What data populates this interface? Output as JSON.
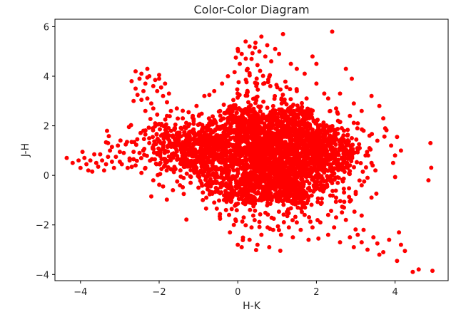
{
  "chart_data": {
    "type": "scatter",
    "title": "Color-Color Diagram",
    "xlabel": "H-K",
    "ylabel": "J-H",
    "xlim": [
      -4.65,
      5.35
    ],
    "ylim": [
      -4.25,
      6.3
    ],
    "xticks": [
      -4,
      -2,
      0,
      2,
      4
    ],
    "yticks": [
      -4,
      -2,
      0,
      2,
      4,
      6
    ],
    "xtick_labels": [
      "−4",
      "−2",
      "0",
      "2",
      "4"
    ],
    "ytick_labels": [
      "−4",
      "−2",
      "0",
      "2",
      "4",
      "6"
    ],
    "grid": false,
    "legend": false,
    "marker_color": "#ff0000",
    "cluster_regions": [
      {
        "center": [
          0.5,
          0.8
        ],
        "spread": [
          1.0,
          0.9
        ]
      },
      {
        "center": [
          0.6,
          1.3
        ],
        "spread": [
          0.4,
          1.3
        ]
      },
      {
        "center": [
          1.0,
          0.0
        ],
        "spread": [
          1.1,
          0.9
        ]
      },
      {
        "center": [
          -1.2,
          1.2
        ],
        "spread": [
          0.7,
          0.5
        ]
      },
      {
        "center": [
          1.8,
          1.1
        ],
        "spread": [
          0.6,
          0.6
        ]
      }
    ],
    "points": [
      [
        -4.35,
        0.7
      ],
      [
        -4.2,
        0.5
      ],
      [
        -4.05,
        0.6
      ],
      [
        -4.0,
        0.3
      ],
      [
        -3.9,
        0.7
      ],
      [
        -3.85,
        0.45
      ],
      [
        -3.75,
        0.6
      ],
      [
        -3.7,
        0.15
      ],
      [
        -3.6,
        0.5
      ],
      [
        -3.55,
        0.35
      ],
      [
        -3.5,
        0.85
      ],
      [
        -3.45,
        0.6
      ],
      [
        -3.4,
        0.2
      ],
      [
        -3.35,
        0.45
      ],
      [
        -3.3,
        0.75
      ],
      [
        -3.25,
        1.0
      ],
      [
        -3.2,
        0.55
      ],
      [
        -3.15,
        0.3
      ],
      [
        -3.1,
        0.75
      ],
      [
        -3.05,
        1.2
      ],
      [
        -3.0,
        0.95
      ],
      [
        -2.95,
        0.45
      ],
      [
        -2.9,
        0.9
      ],
      [
        -2.85,
        1.25
      ],
      [
        -2.75,
        0.6
      ],
      [
        -2.65,
        0.95
      ],
      [
        -2.6,
        0.4
      ],
      [
        -3.95,
        0.95
      ],
      [
        -3.8,
        0.2
      ],
      [
        -3.65,
        0.85
      ],
      [
        -3.3,
        1.3
      ],
      [
        -3.2,
        1.15
      ],
      [
        -3.0,
        0.55
      ],
      [
        -2.8,
        0.3
      ],
      [
        -2.7,
        1.35
      ],
      [
        -2.6,
        4.2
      ],
      [
        -2.5,
        3.9
      ],
      [
        -2.45,
        4.1
      ],
      [
        -2.35,
        3.7
      ],
      [
        -2.3,
        3.95
      ],
      [
        -2.25,
        4.0
      ],
      [
        -2.15,
        3.6
      ],
      [
        -2.1,
        3.85
      ],
      [
        -2.05,
        3.4
      ],
      [
        -2.0,
        3.9
      ],
      [
        -1.95,
        3.55
      ],
      [
        -1.9,
        3.2
      ],
      [
        -2.6,
        3.5
      ],
      [
        -2.55,
        3.25
      ],
      [
        -2.45,
        3.05
      ],
      [
        -2.4,
        3.4
      ],
      [
        -2.3,
        3.1
      ],
      [
        -2.2,
        2.9
      ],
      [
        -2.7,
        3.8
      ],
      [
        -2.65,
        3.0
      ],
      [
        -2.15,
        2.7
      ],
      [
        -2.35,
        2.6
      ],
      [
        -1.85,
        3.7
      ],
      [
        -1.8,
        2.95
      ],
      [
        -2.0,
        4.05
      ],
      [
        -2.3,
        4.3
      ],
      [
        -1.75,
        3.3
      ],
      [
        -1.7,
        2.6
      ],
      [
        -2.05,
        2.45
      ],
      [
        -2.2,
        -0.85
      ],
      [
        -2.45,
        0.1
      ],
      [
        -2.15,
        -0.2
      ],
      [
        -1.9,
        -0.45
      ],
      [
        -1.65,
        -0.6
      ],
      [
        -2.35,
        0.3
      ],
      [
        0.0,
        5.1
      ],
      [
        0.1,
        4.9
      ],
      [
        0.2,
        5.4
      ],
      [
        0.3,
        5.2
      ],
      [
        0.35,
        4.7
      ],
      [
        0.45,
        5.35
      ],
      [
        0.55,
        5.0
      ],
      [
        0.6,
        5.6
      ],
      [
        0.7,
        4.8
      ],
      [
        0.75,
        5.25
      ],
      [
        0.85,
        4.6
      ],
      [
        0.95,
        5.1
      ],
      [
        1.15,
        5.7
      ],
      [
        0.05,
        4.5
      ],
      [
        0.25,
        4.3
      ],
      [
        0.5,
        4.45
      ],
      [
        -0.05,
        4.75
      ],
      [
        1.05,
        4.9
      ],
      [
        1.35,
        4.5
      ],
      [
        1.5,
        4.3
      ],
      [
        1.7,
        4.1
      ],
      [
        2.3,
        3.1
      ],
      [
        2.5,
        2.7
      ],
      [
        2.6,
        3.3
      ],
      [
        2.75,
        4.3
      ],
      [
        2.85,
        2.4
      ],
      [
        2.9,
        3.9
      ],
      [
        3.05,
        2.1
      ],
      [
        3.2,
        1.8
      ],
      [
        3.4,
        3.2
      ],
      [
        3.55,
        1.4
      ],
      [
        3.6,
        2.8
      ],
      [
        3.75,
        1.9
      ],
      [
        3.9,
        1.2
      ],
      [
        4.05,
        1.55
      ],
      [
        4.15,
        1.0
      ],
      [
        2.4,
        5.8
      ],
      [
        2.0,
        4.5
      ],
      [
        1.9,
        4.8
      ],
      [
        3.15,
        2.6
      ],
      [
        3.35,
        1.6
      ],
      [
        2.95,
        2.9
      ],
      [
        3.7,
        2.3
      ],
      [
        4.0,
        0.8
      ],
      [
        3.95,
        0.5
      ],
      [
        4.9,
        1.3
      ],
      [
        4.85,
        -0.2
      ],
      [
        2.3,
        -2.4
      ],
      [
        2.45,
        -2.1
      ],
      [
        2.6,
        -2.7
      ],
      [
        2.75,
        -1.8
      ],
      [
        2.85,
        -2.5
      ],
      [
        2.95,
        -2.9
      ],
      [
        3.05,
        -2.4
      ],
      [
        3.15,
        -2.7
      ],
      [
        3.3,
        -3.0
      ],
      [
        3.45,
        -2.5
      ],
      [
        3.55,
        -2.75
      ],
      [
        3.7,
        -3.1
      ],
      [
        3.85,
        -2.6
      ],
      [
        4.1,
        -2.3
      ],
      [
        4.15,
        -2.8
      ],
      [
        4.25,
        -3.05
      ],
      [
        4.05,
        -3.45
      ],
      [
        4.45,
        -3.9
      ],
      [
        4.6,
        -3.8
      ],
      [
        4.95,
        -3.85
      ],
      [
        3.6,
        -3.2
      ],
      [
        3.2,
        -2.2
      ],
      [
        2.5,
        -1.7
      ],
      [
        2.65,
        -1.5
      ],
      [
        0.0,
        -2.8
      ],
      [
        0.1,
        -2.9
      ],
      [
        0.3,
        -2.6
      ],
      [
        0.5,
        -2.8
      ],
      [
        0.8,
        -2.9
      ],
      [
        1.1,
        -2.4
      ],
      [
        1.4,
        -2.5
      ],
      [
        1.6,
        -2.2
      ],
      [
        1.8,
        -2.6
      ],
      [
        2.05,
        -2.55
      ],
      [
        -0.1,
        -2.0
      ],
      [
        -0.2,
        -2.3
      ],
      [
        -0.3,
        -1.4
      ],
      [
        -0.45,
        -1.75
      ],
      [
        -0.6,
        -1.1
      ],
      [
        -0.8,
        -0.9
      ],
      [
        -1.0,
        -0.5
      ],
      [
        -1.2,
        -0.3
      ],
      [
        -1.45,
        -0.05
      ],
      [
        -1.7,
        0.25
      ],
      [
        -1.85,
        0.55
      ],
      [
        -2.05,
        0.85
      ],
      [
        -1.6,
        1.9
      ],
      [
        -1.4,
        2.3
      ],
      [
        -1.25,
        2.55
      ],
      [
        -1.05,
        2.8
      ],
      [
        -0.85,
        3.2
      ],
      [
        -0.6,
        3.4
      ],
      [
        -0.4,
        3.7
      ],
      [
        -0.25,
        4.0
      ],
      [
        -0.45,
        2.6
      ],
      [
        -0.7,
        2.2
      ],
      [
        -1.15,
        1.8
      ],
      [
        -1.55,
        1.2
      ],
      [
        -1.95,
        1.6
      ],
      [
        -2.25,
        1.3
      ],
      [
        -2.5,
        0.9
      ],
      [
        -2.65,
        0.65
      ],
      [
        -2.4,
        1.8
      ],
      [
        -2.1,
        2.1
      ],
      [
        -1.8,
        2.4
      ],
      [
        -1.55,
        2.7
      ],
      [
        1.5,
        3.4
      ],
      [
        1.75,
        3.1
      ],
      [
        2.0,
        3.7
      ],
      [
        2.2,
        3.3
      ],
      [
        2.35,
        2.6
      ],
      [
        2.55,
        2.2
      ],
      [
        2.7,
        1.8
      ],
      [
        2.9,
        1.5
      ],
      [
        3.1,
        1.1
      ],
      [
        3.25,
        0.8
      ],
      [
        3.4,
        0.5
      ],
      [
        3.5,
        0.2
      ],
      [
        3.3,
        -0.1
      ],
      [
        3.15,
        -0.4
      ],
      [
        3.0,
        -0.75
      ],
      [
        2.85,
        -1.05
      ],
      [
        2.7,
        -1.3
      ],
      [
        2.5,
        -0.9
      ],
      [
        2.3,
        -1.6
      ],
      [
        2.1,
        -1.9
      ],
      [
        1.9,
        -2.1
      ],
      [
        1.7,
        -1.6
      ],
      [
        1.5,
        -1.9
      ],
      [
        1.3,
        -2.1
      ],
      [
        0.9,
        -2.2
      ],
      [
        0.6,
        -2.4
      ],
      [
        0.35,
        -2.1
      ],
      [
        0.15,
        -1.7
      ],
      [
        -0.05,
        -1.2
      ],
      [
        -0.25,
        -0.8
      ]
    ]
  }
}
